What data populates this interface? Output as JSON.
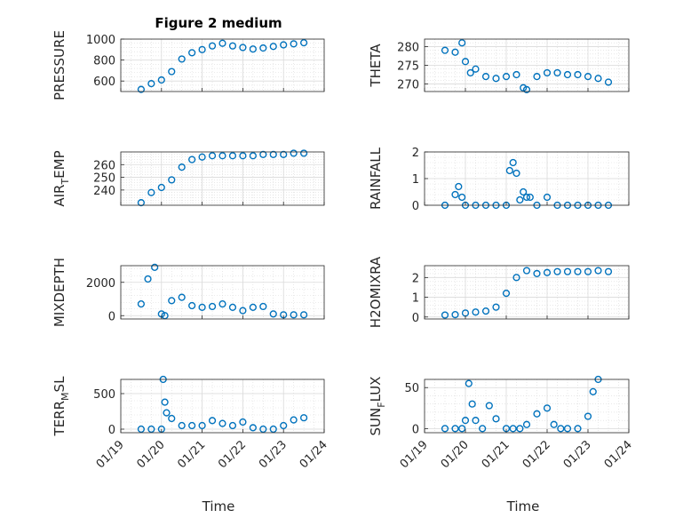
{
  "figure": {
    "title": "Figure 2 medium",
    "xlabel": "Time"
  },
  "colors": {
    "marker": "#0072BD",
    "grid": "#d9d9d9",
    "axis": "#262626"
  },
  "chart_data": [
    {
      "type": "scatter",
      "title": "Figure 2 medium",
      "ylabel": "PRESSURE",
      "ylim": [
        500,
        1000
      ],
      "yticks": [
        "600",
        "800",
        "1000"
      ],
      "yticks_values": [
        600,
        800,
        1000
      ],
      "xticks": [],
      "grid": true,
      "x": [
        "01/19 12:00",
        "01/19 18:00",
        "01/20 00:00",
        "01/20 06:00",
        "01/20 12:00",
        "01/20 18:00",
        "01/21 00:00",
        "01/21 06:00",
        "01/21 12:00",
        "01/21 18:00",
        "01/22 00:00",
        "01/22 06:00",
        "01/22 12:00",
        "01/22 18:00",
        "01/23 00:00",
        "01/23 06:00",
        "01/23 12:00"
      ],
      "y": [
        520,
        575,
        610,
        690,
        810,
        870,
        900,
        935,
        960,
        935,
        920,
        905,
        915,
        930,
        945,
        955,
        965
      ]
    },
    {
      "type": "scatter",
      "ylabel": "THETA",
      "ylim": [
        268,
        282
      ],
      "yticks": [
        "270",
        "275",
        "280"
      ],
      "yticks_values": [
        270,
        275,
        280
      ],
      "xticks": [],
      "grid": true,
      "x": [
        "01/19 12:00",
        "01/19 18:00",
        "01/19 22:00",
        "01/20 00:00",
        "01/20 03:00",
        "01/20 06:00",
        "01/20 12:00",
        "01/20 18:00",
        "01/21 00:00",
        "01/21 06:00",
        "01/21 10:00",
        "01/21 12:00",
        "01/21 18:00",
        "01/22 00:00",
        "01/22 06:00",
        "01/22 12:00",
        "01/22 18:00",
        "01/23 00:00",
        "01/23 06:00",
        "01/23 12:00"
      ],
      "y": [
        279,
        278.5,
        281,
        276,
        273,
        274,
        272,
        271.5,
        272,
        272.5,
        269,
        268.5,
        272,
        273,
        273,
        272.5,
        272.5,
        272,
        271.5,
        270.5
      ]
    },
    {
      "type": "scatter",
      "ylabel": "AIR_TEMP",
      "ylabel_parts": [
        "AIR",
        "T",
        "EMP"
      ],
      "ylim": [
        228,
        270
      ],
      "yticks": [
        "240",
        "250",
        "260"
      ],
      "yticks_values": [
        240,
        250,
        260
      ],
      "xticks": [],
      "grid": true,
      "x": [
        "01/19 12:00",
        "01/19 18:00",
        "01/20 00:00",
        "01/20 06:00",
        "01/20 12:00",
        "01/20 18:00",
        "01/21 00:00",
        "01/21 06:00",
        "01/21 12:00",
        "01/21 18:00",
        "01/22 00:00",
        "01/22 06:00",
        "01/22 12:00",
        "01/22 18:00",
        "01/23 00:00",
        "01/23 06:00",
        "01/23 12:00"
      ],
      "y": [
        230,
        238,
        242,
        248,
        258,
        264,
        266,
        267,
        267,
        267,
        267,
        267,
        268,
        268,
        268,
        269,
        269
      ]
    },
    {
      "type": "scatter",
      "ylabel": "RAINFALL",
      "ylim": [
        0,
        2
      ],
      "yticks": [
        "0",
        "1",
        "2"
      ],
      "yticks_values": [
        0,
        1,
        2
      ],
      "xticks": [],
      "grid": true,
      "x": [
        "01/19 12:00",
        "01/19 18:00",
        "01/19 20:00",
        "01/19 22:00",
        "01/20 00:00",
        "01/20 06:00",
        "01/20 12:00",
        "01/20 18:00",
        "01/21 00:00",
        "01/21 02:00",
        "01/21 04:00",
        "01/21 06:00",
        "01/21 08:00",
        "01/21 10:00",
        "01/21 12:00",
        "01/21 14:00",
        "01/21 18:00",
        "01/22 00:00",
        "01/22 06:00",
        "01/22 12:00",
        "01/22 18:00",
        "01/23 00:00",
        "01/23 06:00",
        "01/23 12:00"
      ],
      "y": [
        0,
        0.4,
        0.7,
        0.3,
        0,
        0,
        0,
        0,
        0,
        1.3,
        1.6,
        1.2,
        0.2,
        0.5,
        0.3,
        0.3,
        0,
        0.3,
        0,
        0,
        0,
        0,
        0,
        0
      ]
    },
    {
      "type": "scatter",
      "ylabel": "MIXDEPTH",
      "ylim": [
        -200,
        3000
      ],
      "yticks": [
        "0",
        "2000"
      ],
      "yticks_values": [
        0,
        2000
      ],
      "xticks": [],
      "grid": true,
      "x": [
        "01/19 12:00",
        "01/19 16:00",
        "01/19 20:00",
        "01/20 00:00",
        "01/20 02:00",
        "01/20 06:00",
        "01/20 12:00",
        "01/20 18:00",
        "01/21 00:00",
        "01/21 06:00",
        "01/21 12:00",
        "01/21 18:00",
        "01/22 00:00",
        "01/22 06:00",
        "01/22 12:00",
        "01/22 18:00",
        "01/23 00:00",
        "01/23 06:00",
        "01/23 12:00"
      ],
      "y": [
        700,
        2200,
        2900,
        100,
        0,
        900,
        1100,
        600,
        500,
        550,
        700,
        500,
        300,
        500,
        550,
        100,
        50,
        50,
        50
      ]
    },
    {
      "type": "scatter",
      "ylabel": "H2OMIXRA",
      "ylim": [
        -0.1,
        2.6
      ],
      "yticks": [
        "0",
        "1",
        "2"
      ],
      "yticks_values": [
        0,
        1,
        2
      ],
      "xticks": [],
      "grid": true,
      "x": [
        "01/19 12:00",
        "01/19 18:00",
        "01/20 00:00",
        "01/20 06:00",
        "01/20 12:00",
        "01/20 18:00",
        "01/21 00:00",
        "01/21 06:00",
        "01/21 12:00",
        "01/21 18:00",
        "01/22 00:00",
        "01/22 06:00",
        "01/22 12:00",
        "01/22 18:00",
        "01/23 00:00",
        "01/23 06:00",
        "01/23 12:00"
      ],
      "y": [
        0.1,
        0.12,
        0.2,
        0.25,
        0.3,
        0.5,
        1.2,
        2.0,
        2.35,
        2.2,
        2.25,
        2.3,
        2.3,
        2.3,
        2.3,
        2.35,
        2.3
      ]
    },
    {
      "type": "scatter",
      "ylabel": "TERR_MSL",
      "ylabel_parts": [
        "TERR",
        "M",
        "SL"
      ],
      "ylim": [
        -50,
        700
      ],
      "yticks": [
        "0",
        "500"
      ],
      "yticks_values": [
        0,
        500
      ],
      "xticks": [
        "01/19",
        "01/20",
        "01/21",
        "01/22",
        "01/23",
        "01/24"
      ],
      "xlabel": "Time",
      "grid": true,
      "x": [
        "01/19 12:00",
        "01/19 18:00",
        "01/20 00:00",
        "01/20 01:00",
        "01/20 02:00",
        "01/20 03:00",
        "01/20 06:00",
        "01/20 12:00",
        "01/20 18:00",
        "01/21 00:00",
        "01/21 06:00",
        "01/21 12:00",
        "01/21 18:00",
        "01/22 00:00",
        "01/22 06:00",
        "01/22 12:00",
        "01/22 18:00",
        "01/23 00:00",
        "01/23 06:00",
        "01/23 12:00"
      ],
      "y": [
        0,
        0,
        0,
        700,
        380,
        230,
        150,
        50,
        50,
        50,
        120,
        80,
        50,
        100,
        20,
        0,
        0,
        50,
        130,
        160
      ]
    },
    {
      "type": "scatter",
      "ylabel": "SUN_FLUX",
      "ylabel_parts": [
        "SUN",
        "F",
        "LUX"
      ],
      "ylim": [
        -5,
        60
      ],
      "yticks": [
        "0",
        "50"
      ],
      "yticks_values": [
        0,
        50
      ],
      "xticks": [
        "01/19",
        "01/20",
        "01/21",
        "01/22",
        "01/23",
        "01/24"
      ],
      "xlabel": "Time",
      "grid": true,
      "x": [
        "01/19 12:00",
        "01/19 18:00",
        "01/19 22:00",
        "01/20 00:00",
        "01/20 02:00",
        "01/20 04:00",
        "01/20 06:00",
        "01/20 10:00",
        "01/20 14:00",
        "01/20 18:00",
        "01/21 00:00",
        "01/21 04:00",
        "01/21 08:00",
        "01/21 12:00",
        "01/21 18:00",
        "01/22 00:00",
        "01/22 04:00",
        "01/22 08:00",
        "01/22 12:00",
        "01/22 18:00",
        "01/23 00:00",
        "01/23 03:00",
        "01/23 06:00"
      ],
      "y": [
        0,
        0,
        0,
        10,
        55,
        30,
        10,
        0,
        28,
        12,
        0,
        0,
        0,
        5,
        18,
        25,
        5,
        0,
        0,
        0,
        15,
        45,
        60
      ]
    }
  ]
}
